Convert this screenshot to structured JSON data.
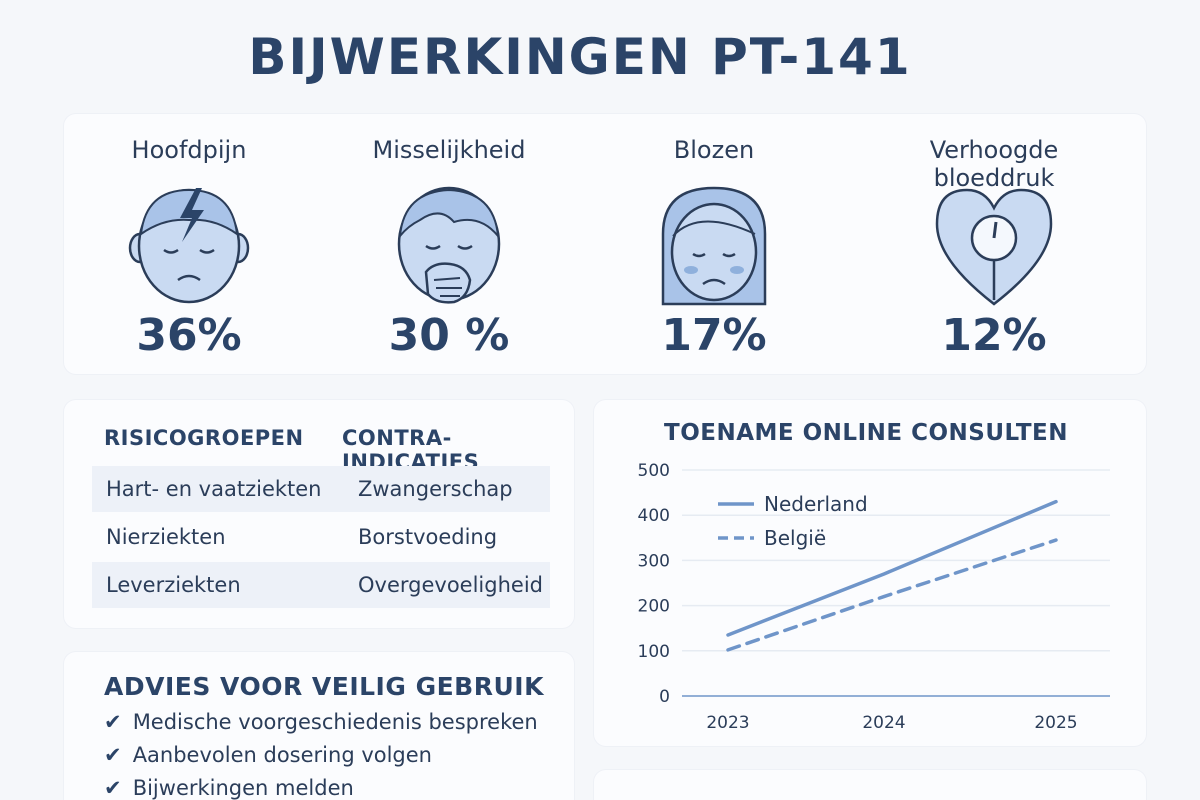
{
  "title": "BIJWERKINGEN PT-141",
  "side_effects": [
    {
      "name": "Hoofdpijn",
      "value": "36%",
      "icon": "headache-face-icon"
    },
    {
      "name": "Misselijkheid",
      "value": "30 %",
      "icon": "nausea-face-icon"
    },
    {
      "name": "Blozen",
      "value": "17%",
      "icon": "flushed-face-icon"
    },
    {
      "name": "Verhoogde bloeddruk",
      "value": "12%",
      "icon": "heart-gauge-icon"
    }
  ],
  "risk_table": {
    "headers": [
      "RISICOGROEPEN",
      "CONTRA-INDICATIES"
    ],
    "rows": [
      [
        "Hart- en vaatziekten",
        "Zwangerschap"
      ],
      [
        "Nierziekten",
        "Borstvoeding"
      ],
      [
        "Leverziekten",
        "Overgevoeligheid"
      ]
    ]
  },
  "advice": {
    "title": "ADVIES VOOR VEILIG GEBRUIK",
    "items": [
      "Medische voorgeschiedenis bespreken",
      "Aanbevolen dosering volgen",
      "Bijwerkingen melden"
    ]
  },
  "colors": {
    "primary": "#2b4468",
    "line": "#6f95c9",
    "icon_fill": "#c9daf2",
    "icon_stroke": "#2b3d59"
  },
  "chart_data": {
    "type": "line",
    "title": "TOENAME ONLINE CONSULTEN",
    "x": [
      "2023",
      "2024",
      "2025"
    ],
    "series": [
      {
        "name": "Nederland",
        "values": [
          135,
          270,
          430
        ],
        "style": "solid"
      },
      {
        "name": "België",
        "values": [
          102,
          220,
          345
        ],
        "style": "dashed"
      }
    ],
    "yticks": [
      0,
      100,
      200,
      300,
      400,
      500
    ],
    "ylim": [
      0,
      500
    ],
    "grid": true,
    "legend": "top-left"
  }
}
